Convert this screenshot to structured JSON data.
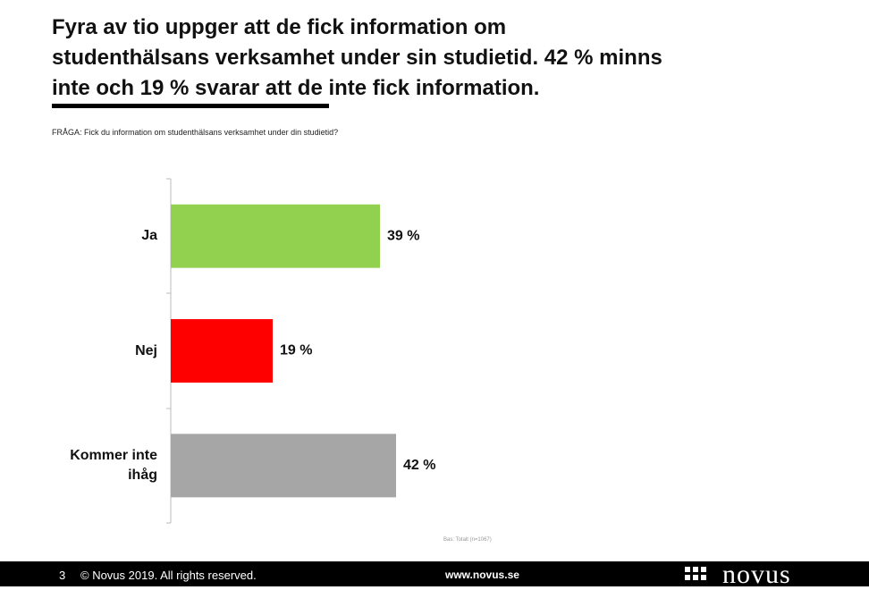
{
  "chart_data": {
    "type": "hbar",
    "title_lines": [
      "Fyra av tio uppger att de fick information om",
      "studenthälsans verksamhet under sin studietid. 42 % minns",
      "inte och 19 % svarar att de inte fick information."
    ],
    "question": "FRÅGA: Fick du information om studenthälsans verksamhet under din studietid?",
    "categories": [
      "Ja",
      "Nej",
      "Kommer inte ihåg"
    ],
    "values": [
      39,
      19,
      42
    ],
    "value_labels": [
      "39 %",
      "19 %",
      "42 %"
    ],
    "colors": [
      "#92d050",
      "#ff0000",
      "#a6a6a6"
    ],
    "xlim": [
      0,
      100
    ],
    "base_note": "Bas: Totalt (n=1067)"
  },
  "footer": {
    "page": "3",
    "copyright": "© Novus 2019. All rights reserved.",
    "url": "www.novus.se",
    "logo": "novus"
  }
}
